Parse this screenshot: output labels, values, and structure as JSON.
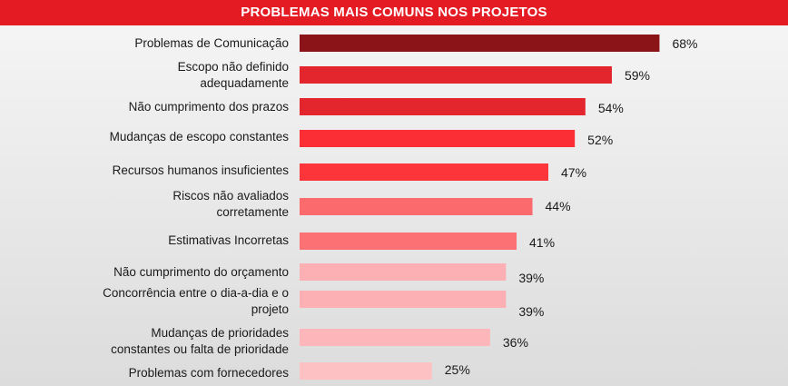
{
  "chart_data": {
    "type": "bar",
    "orientation": "horizontal",
    "title": "PROBLEMAS MAIS COMUNS NOS PROJETOS",
    "categories": [
      [
        "Problemas de Comunicação"
      ],
      [
        "Escopo não definido",
        "adequadamente"
      ],
      [
        "Não cumprimento dos prazos"
      ],
      [
        "Mudanças de escopo constantes"
      ],
      [
        "Recursos humanos insuficientes"
      ],
      [
        "Riscos não avaliados",
        "corretamente"
      ],
      [
        "Estimativas Incorretas"
      ],
      [
        "Não cumprimento do orçamento"
      ],
      [
        "Concorrência entre o dia-a-dia e o",
        "projeto"
      ],
      [
        "Mudanças de prioridades",
        "constantes ou falta de prioridade"
      ],
      [
        "Problemas com fornecedores"
      ]
    ],
    "values": [
      68,
      59,
      54,
      52,
      47,
      44,
      41,
      39,
      39,
      36,
      25
    ],
    "value_labels": [
      "68%",
      "59%",
      "54%",
      "52%",
      "47%",
      "44%",
      "41%",
      "39%",
      "39%",
      "36%",
      "25%"
    ],
    "bar_colors": [
      "#8b1418",
      "#e3262e",
      "#e3262e",
      "#fb2e35",
      "#fb3539",
      "#fb6b6e",
      "#fb7174",
      "#fdb0b4",
      "#fdb0b4",
      "#fdb7ba",
      "#fdc1c4"
    ],
    "xlim": [
      0,
      100
    ],
    "grid": false,
    "legend": "none"
  }
}
